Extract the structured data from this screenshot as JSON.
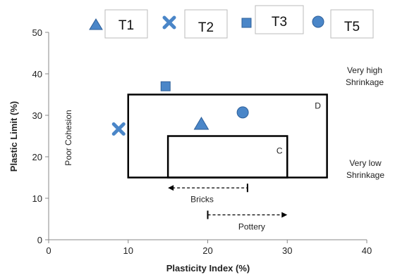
{
  "chart_data": {
    "type": "scatter",
    "title": "",
    "xlabel": "Plasticity Index (%)",
    "ylabel": "Plastic Limit (%)",
    "xlim": [
      0,
      40
    ],
    "ylim": [
      0,
      50
    ],
    "xticks": [
      "0",
      "10",
      "20",
      "30",
      "40"
    ],
    "yticks": [
      "0",
      "10",
      "20",
      "30",
      "40",
      "50"
    ],
    "grid": false,
    "legend_position": "top",
    "accent_color": "#4a86c8",
    "series": [
      {
        "name": "T1",
        "marker": "triangle",
        "x": 19.2,
        "y": 27.8
      },
      {
        "name": "T2",
        "marker": "x",
        "x": 8.8,
        "y": 26.7
      },
      {
        "name": "T3",
        "marker": "square",
        "x": 14.7,
        "y": 37.0
      },
      {
        "name": "T5",
        "marker": "circle",
        "x": 24.4,
        "y": 30.7
      }
    ],
    "regions": [
      {
        "label": "D",
        "x": [
          10,
          35
        ],
        "y": [
          15,
          35
        ]
      },
      {
        "label": "C",
        "x": [
          15,
          30
        ],
        "y": [
          15,
          25
        ]
      }
    ],
    "ranges": [
      {
        "label": "Bricks",
        "x": [
          15,
          25
        ],
        "y": 12.5
      },
      {
        "label": "Pottery",
        "x": [
          20,
          30
        ],
        "y": 6
      }
    ],
    "annotations": {
      "poor_cohesion": "Poor Cohesion",
      "very_high_1": "Very high",
      "very_high_2": "Shrinkage",
      "very_low_1": "Very low",
      "very_low_2": "Shrinkage"
    }
  }
}
